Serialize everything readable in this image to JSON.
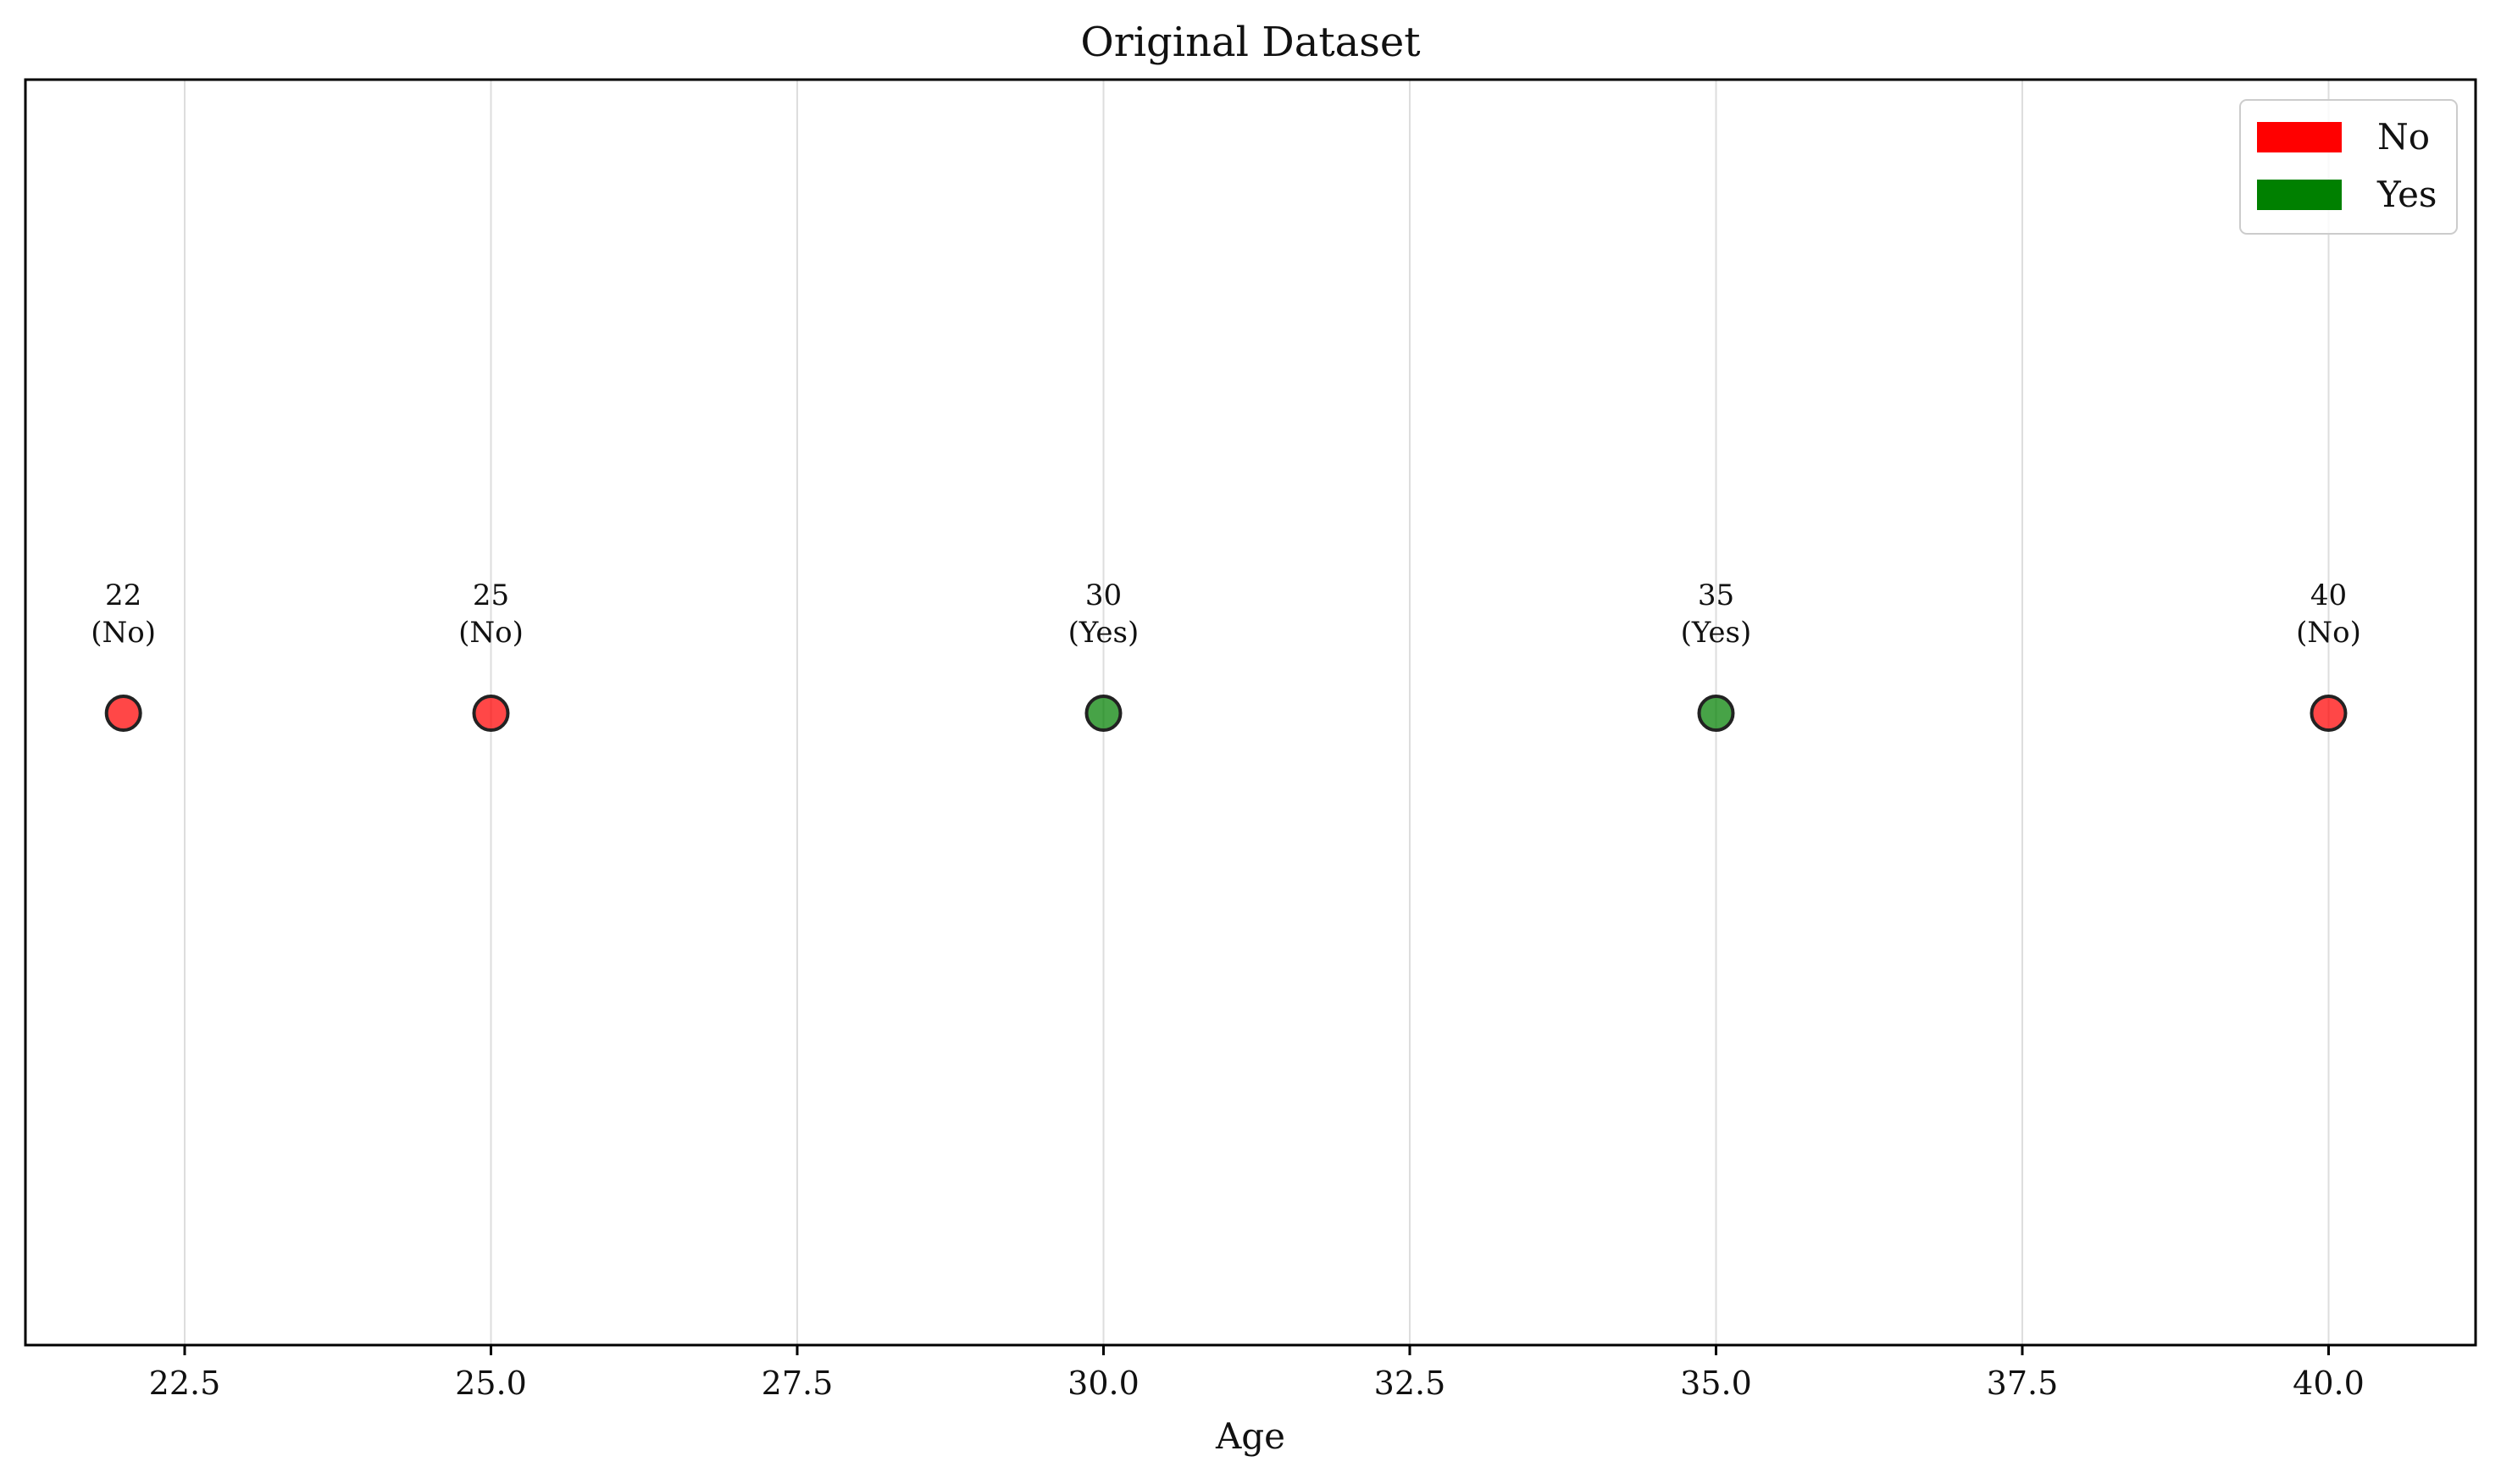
{
  "chart_data": {
    "type": "scatter",
    "title": "Original Dataset",
    "xlabel": "Age",
    "ylabel": "",
    "xlim": [
      21.2,
      41.2
    ],
    "xticks": [
      22.5,
      25.0,
      27.5,
      30.0,
      32.5,
      35.0,
      37.5,
      40.0
    ],
    "xtick_labels": [
      "22.5",
      "25.0",
      "27.5",
      "30.0",
      "32.5",
      "35.0",
      "37.5",
      "40.0"
    ],
    "grid": "vertical",
    "legend_position": "top-right",
    "legend": [
      {
        "label": "No",
        "color": "#ff0000"
      },
      {
        "label": "Yes",
        "color": "#008000"
      }
    ],
    "points": [
      {
        "x": 22,
        "class": "No",
        "label_value": "22",
        "label_class": "(No)",
        "color": "#ff0000"
      },
      {
        "x": 25,
        "class": "No",
        "label_value": "25",
        "label_class": "(No)",
        "color": "#ff0000"
      },
      {
        "x": 30,
        "class": "Yes",
        "label_value": "30",
        "label_class": "(Yes)",
        "color": "#008000"
      },
      {
        "x": 35,
        "class": "Yes",
        "label_value": "35",
        "label_class": "(Yes)",
        "color": "#008000"
      },
      {
        "x": 40,
        "class": "No",
        "label_value": "40",
        "label_class": "(No)",
        "color": "#ff0000"
      }
    ]
  }
}
